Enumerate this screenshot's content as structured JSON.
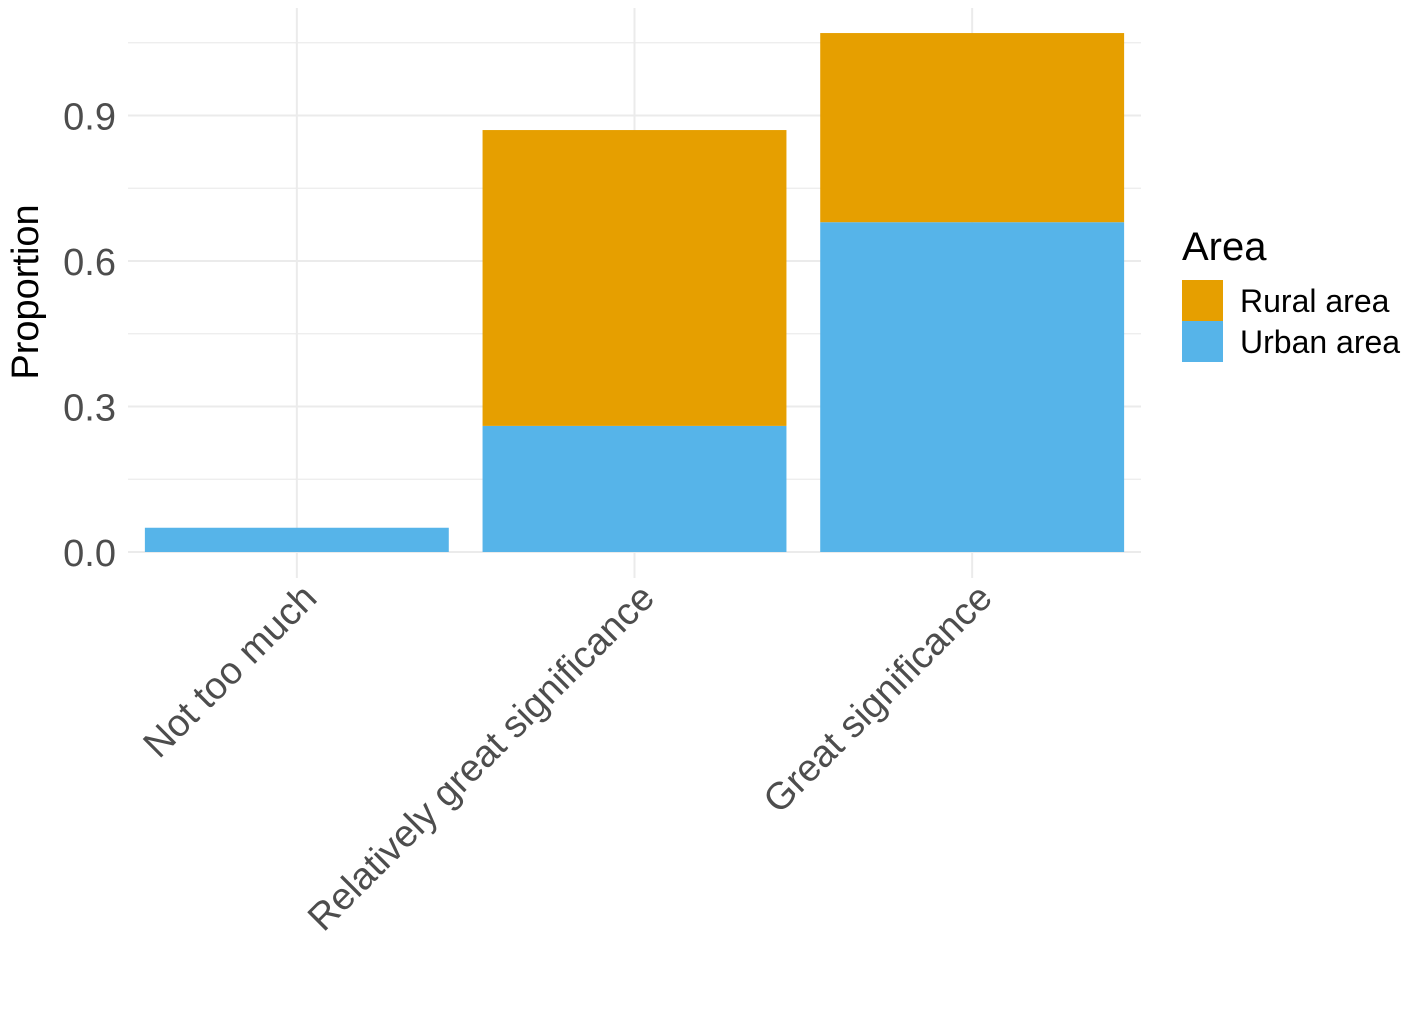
{
  "chart_data": {
    "type": "bar",
    "stacked": true,
    "categories": [
      "Not too much",
      "Relatively great significance",
      "Great significance"
    ],
    "series": [
      {
        "name": "Urban area",
        "color": "#56B4E9",
        "values": [
          0.05,
          0.26,
          0.68
        ]
      },
      {
        "name": "Rural area",
        "color": "#E69F00",
        "values": [
          0.0,
          0.61,
          0.39
        ]
      }
    ],
    "title": "",
    "xlabel": "",
    "ylabel": "Proportion",
    "ylim": [
      -0.08,
      1.1
    ],
    "yticks": [
      "0.0",
      "0.3",
      "0.6",
      "0.9"
    ],
    "ytick_values": [
      0.0,
      0.3,
      0.6,
      0.9
    ],
    "grid": true,
    "legend": {
      "title": "Area",
      "position": "right",
      "entries": [
        {
          "label": "Rural area",
          "color": "#E69F00"
        },
        {
          "label": "Urban area",
          "color": "#56B4E9"
        }
      ]
    }
  }
}
